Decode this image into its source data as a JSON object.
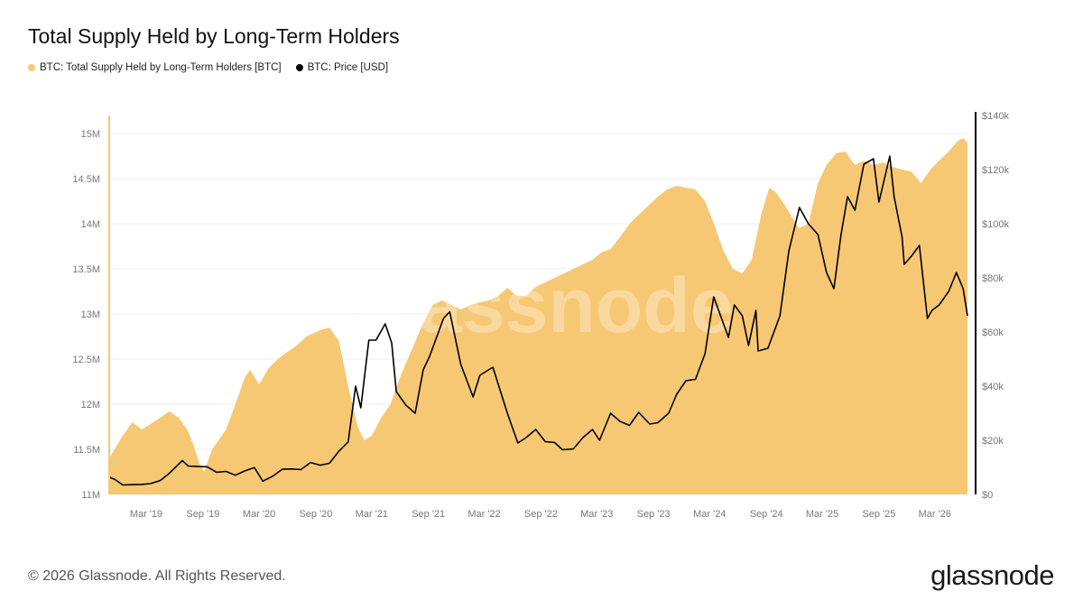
{
  "title": "Total Supply Held by Long-Term Holders",
  "legend": [
    {
      "label": "BTC: Total Supply Held by Long-Term Holders [BTC]",
      "color": "#f7c873"
    },
    {
      "label": "BTC: Price [USD]",
      "color": "#000000"
    }
  ],
  "footer": "© 2026 Glassnode. All Rights Reserved.",
  "logo": "glassnode",
  "watermark": "glassnode",
  "chart_data": {
    "type": "area",
    "title": "Total Supply Held by Long-Term Holders",
    "x_range": [
      "2018-11-01",
      "2026-06-15"
    ],
    "x_ticks": [
      {
        "date": "2019-03-01",
        "label": "Mar '19"
      },
      {
        "date": "2019-09-01",
        "label": "Sep '19"
      },
      {
        "date": "2020-03-01",
        "label": "Mar '20"
      },
      {
        "date": "2020-09-01",
        "label": "Sep '20"
      },
      {
        "date": "2021-03-01",
        "label": "Mar '21"
      },
      {
        "date": "2021-09-01",
        "label": "Sep '21"
      },
      {
        "date": "2022-03-01",
        "label": "Mar '22"
      },
      {
        "date": "2022-09-01",
        "label": "Sep '22"
      },
      {
        "date": "2023-03-01",
        "label": "Mar '23"
      },
      {
        "date": "2023-09-01",
        "label": "Sep '23"
      },
      {
        "date": "2024-03-01",
        "label": "Mar '24"
      },
      {
        "date": "2024-09-01",
        "label": "Sep '24"
      },
      {
        "date": "2025-03-01",
        "label": "Mar '25"
      },
      {
        "date": "2025-09-01",
        "label": "Sep '25"
      },
      {
        "date": "2026-03-01",
        "label": "Mar '26"
      }
    ],
    "left_axis": {
      "range": [
        11000000,
        15200000
      ],
      "ticks": [
        {
          "value": 11000000,
          "label": "11M"
        },
        {
          "value": 11500000,
          "label": "11.5M"
        },
        {
          "value": 12000000,
          "label": "12M"
        },
        {
          "value": 12500000,
          "label": "12.5M"
        },
        {
          "value": 13000000,
          "label": "13M"
        },
        {
          "value": 13500000,
          "label": "13.5M"
        },
        {
          "value": 14000000,
          "label": "14M"
        },
        {
          "value": 14500000,
          "label": "14.5M"
        },
        {
          "value": 15000000,
          "label": "15M"
        }
      ]
    },
    "right_axis": {
      "range": [
        0,
        140000
      ],
      "ticks": [
        {
          "value": 0,
          "label": "$0"
        },
        {
          "value": 20000,
          "label": "$20k"
        },
        {
          "value": 40000,
          "label": "$40k"
        },
        {
          "value": 60000,
          "label": "$60k"
        },
        {
          "value": 80000,
          "label": "$80k"
        },
        {
          "value": 100000,
          "label": "$100k"
        },
        {
          "value": 120000,
          "label": "$120k"
        },
        {
          "value": 140000,
          "label": "$140k"
        }
      ]
    },
    "grid": "horizontal",
    "series": [
      {
        "name": "BTC: Total Supply Held by Long-Term Holders [BTC]",
        "type": "area",
        "axis": "left",
        "color": "#f7c873",
        "points": [
          [
            "2018-11-01",
            11400000
          ],
          [
            "2018-12-15",
            11650000
          ],
          [
            "2019-01-15",
            11800000
          ],
          [
            "2019-02-15",
            11720000
          ],
          [
            "2019-03-15",
            11780000
          ],
          [
            "2019-04-15",
            11850000
          ],
          [
            "2019-05-15",
            11920000
          ],
          [
            "2019-06-15",
            11850000
          ],
          [
            "2019-07-15",
            11700000
          ],
          [
            "2019-08-01",
            11550000
          ],
          [
            "2019-08-20",
            11350000
          ],
          [
            "2019-09-05",
            11250000
          ],
          [
            "2019-10-01",
            11500000
          ],
          [
            "2019-11-15",
            11720000
          ],
          [
            "2019-12-15",
            12000000
          ],
          [
            "2020-01-15",
            12300000
          ],
          [
            "2020-02-01",
            12380000
          ],
          [
            "2020-03-01",
            12220000
          ],
          [
            "2020-04-01",
            12400000
          ],
          [
            "2020-05-01",
            12500000
          ],
          [
            "2020-06-01",
            12580000
          ],
          [
            "2020-07-01",
            12650000
          ],
          [
            "2020-08-01",
            12750000
          ],
          [
            "2020-09-15",
            12820000
          ],
          [
            "2020-10-15",
            12850000
          ],
          [
            "2020-11-15",
            12700000
          ],
          [
            "2020-12-15",
            12200000
          ],
          [
            "2021-01-15",
            11750000
          ],
          [
            "2021-02-05",
            11600000
          ],
          [
            "2021-03-01",
            11650000
          ],
          [
            "2021-04-01",
            11850000
          ],
          [
            "2021-05-01",
            12000000
          ],
          [
            "2021-06-01",
            12300000
          ],
          [
            "2021-07-15",
            12650000
          ],
          [
            "2021-08-15",
            12900000
          ],
          [
            "2021-09-15",
            13100000
          ],
          [
            "2021-10-15",
            13150000
          ],
          [
            "2021-11-15",
            13100000
          ],
          [
            "2021-12-15",
            13050000
          ],
          [
            "2022-01-15",
            13100000
          ],
          [
            "2022-02-15",
            13130000
          ],
          [
            "2022-03-15",
            13150000
          ],
          [
            "2022-04-15",
            13200000
          ],
          [
            "2022-05-15",
            13290000
          ],
          [
            "2022-06-15",
            13200000
          ],
          [
            "2022-07-15",
            13200000
          ],
          [
            "2022-08-15",
            13300000
          ],
          [
            "2022-09-15",
            13350000
          ],
          [
            "2022-10-15",
            13400000
          ],
          [
            "2022-11-15",
            13450000
          ],
          [
            "2022-12-15",
            13500000
          ],
          [
            "2023-01-15",
            13550000
          ],
          [
            "2023-02-15",
            13600000
          ],
          [
            "2023-03-15",
            13680000
          ],
          [
            "2023-04-15",
            13720000
          ],
          [
            "2023-05-15",
            13850000
          ],
          [
            "2023-06-15",
            14000000
          ],
          [
            "2023-07-15",
            14100000
          ],
          [
            "2023-08-15",
            14200000
          ],
          [
            "2023-09-15",
            14300000
          ],
          [
            "2023-10-15",
            14380000
          ],
          [
            "2023-11-15",
            14420000
          ],
          [
            "2023-12-15",
            14400000
          ],
          [
            "2024-01-15",
            14380000
          ],
          [
            "2024-02-15",
            14250000
          ],
          [
            "2024-03-15",
            14000000
          ],
          [
            "2024-04-15",
            13700000
          ],
          [
            "2024-05-15",
            13500000
          ],
          [
            "2024-06-15",
            13450000
          ],
          [
            "2024-07-15",
            13600000
          ],
          [
            "2024-08-15",
            14100000
          ],
          [
            "2024-09-10",
            14400000
          ],
          [
            "2024-10-01",
            14350000
          ],
          [
            "2024-11-01",
            14200000
          ],
          [
            "2024-12-15",
            13950000
          ],
          [
            "2025-01-15",
            14000000
          ],
          [
            "2025-02-15",
            14450000
          ],
          [
            "2025-03-15",
            14650000
          ],
          [
            "2025-04-15",
            14780000
          ],
          [
            "2025-05-15",
            14800000
          ],
          [
            "2025-06-15",
            14650000
          ],
          [
            "2025-07-15",
            14700000
          ],
          [
            "2025-08-15",
            14650000
          ],
          [
            "2025-09-15",
            14680000
          ],
          [
            "2025-10-15",
            14630000
          ],
          [
            "2025-11-15",
            14600000
          ],
          [
            "2025-12-15",
            14580000
          ],
          [
            "2026-01-15",
            14450000
          ],
          [
            "2026-02-15",
            14600000
          ],
          [
            "2026-03-15",
            14700000
          ],
          [
            "2026-04-15",
            14800000
          ],
          [
            "2026-05-15",
            14920000
          ],
          [
            "2026-06-01",
            14950000
          ],
          [
            "2026-06-15",
            14900000
          ]
        ]
      },
      {
        "name": "BTC: Price [USD]",
        "type": "line",
        "axis": "right",
        "color": "#000000",
        "points": [
          [
            "2018-11-01",
            6400
          ],
          [
            "2018-11-20",
            5500
          ],
          [
            "2018-12-15",
            3500
          ],
          [
            "2019-01-15",
            3600
          ],
          [
            "2019-02-15",
            3700
          ],
          [
            "2019-03-15",
            4000
          ],
          [
            "2019-04-15",
            5100
          ],
          [
            "2019-05-15",
            7800
          ],
          [
            "2019-06-26",
            12500
          ],
          [
            "2019-07-15",
            10500
          ],
          [
            "2019-08-15",
            10300
          ],
          [
            "2019-09-15",
            10200
          ],
          [
            "2019-10-15",
            8200
          ],
          [
            "2019-11-15",
            8500
          ],
          [
            "2019-12-15",
            7100
          ],
          [
            "2020-01-15",
            8700
          ],
          [
            "2020-02-15",
            9900
          ],
          [
            "2020-03-13",
            4900
          ],
          [
            "2020-04-15",
            6800
          ],
          [
            "2020-05-15",
            9300
          ],
          [
            "2020-06-15",
            9400
          ],
          [
            "2020-07-15",
            9200
          ],
          [
            "2020-08-15",
            11800
          ],
          [
            "2020-09-15",
            10800
          ],
          [
            "2020-10-15",
            11500
          ],
          [
            "2020-11-15",
            16000
          ],
          [
            "2020-12-15",
            19400
          ],
          [
            "2021-01-08",
            40000
          ],
          [
            "2021-01-25",
            32000
          ],
          [
            "2021-02-20",
            57000
          ],
          [
            "2021-03-15",
            57000
          ],
          [
            "2021-04-14",
            63000
          ],
          [
            "2021-05-05",
            56000
          ],
          [
            "2021-05-20",
            38000
          ],
          [
            "2021-06-20",
            33000
          ],
          [
            "2021-07-20",
            30000
          ],
          [
            "2021-08-15",
            46000
          ],
          [
            "2021-09-05",
            51000
          ],
          [
            "2021-10-20",
            65000
          ],
          [
            "2021-11-09",
            67500
          ],
          [
            "2021-12-15",
            48000
          ],
          [
            "2022-01-24",
            36000
          ],
          [
            "2022-02-15",
            44000
          ],
          [
            "2022-03-29",
            47000
          ],
          [
            "2022-05-15",
            30000
          ],
          [
            "2022-06-18",
            19000
          ],
          [
            "2022-07-15",
            21000
          ],
          [
            "2022-08-15",
            24000
          ],
          [
            "2022-09-15",
            19500
          ],
          [
            "2022-10-15",
            19200
          ],
          [
            "2022-11-10",
            16500
          ],
          [
            "2022-12-15",
            16800
          ],
          [
            "2023-01-15",
            21000
          ],
          [
            "2023-02-15",
            24000
          ],
          [
            "2023-03-10",
            20000
          ],
          [
            "2023-04-15",
            30000
          ],
          [
            "2023-05-15",
            27000
          ],
          [
            "2023-06-15",
            25500
          ],
          [
            "2023-07-15",
            30300
          ],
          [
            "2023-08-20",
            26000
          ],
          [
            "2023-09-15",
            26500
          ],
          [
            "2023-10-20",
            30000
          ],
          [
            "2023-11-15",
            37000
          ],
          [
            "2023-12-15",
            42000
          ],
          [
            "2024-01-15",
            42500
          ],
          [
            "2024-02-15",
            52000
          ],
          [
            "2024-03-14",
            73000
          ],
          [
            "2024-04-15",
            63000
          ],
          [
            "2024-05-01",
            58000
          ],
          [
            "2024-05-20",
            70000
          ],
          [
            "2024-06-15",
            66000
          ],
          [
            "2024-07-05",
            55000
          ],
          [
            "2024-07-29",
            68000
          ],
          [
            "2024-08-05",
            53000
          ],
          [
            "2024-09-06",
            54000
          ],
          [
            "2024-10-15",
            66000
          ],
          [
            "2024-11-13",
            90000
          ],
          [
            "2024-12-17",
            106000
          ],
          [
            "2025-01-15",
            100000
          ],
          [
            "2025-02-15",
            96000
          ],
          [
            "2025-03-15",
            82000
          ],
          [
            "2025-04-08",
            76000
          ],
          [
            "2025-05-01",
            96000
          ],
          [
            "2025-05-22",
            110000
          ],
          [
            "2025-06-15",
            105000
          ],
          [
            "2025-07-14",
            122000
          ],
          [
            "2025-08-14",
            124000
          ],
          [
            "2025-09-01",
            108000
          ],
          [
            "2025-10-06",
            125000
          ],
          [
            "2025-10-20",
            110000
          ],
          [
            "2025-11-15",
            95000
          ],
          [
            "2025-11-22",
            85000
          ],
          [
            "2025-12-15",
            88000
          ],
          [
            "2026-01-10",
            92000
          ],
          [
            "2026-02-05",
            65000
          ],
          [
            "2026-02-20",
            68000
          ],
          [
            "2026-03-15",
            70000
          ],
          [
            "2026-04-15",
            75000
          ],
          [
            "2026-05-10",
            82000
          ],
          [
            "2026-06-01",
            76000
          ],
          [
            "2026-06-15",
            66000
          ]
        ]
      }
    ]
  }
}
